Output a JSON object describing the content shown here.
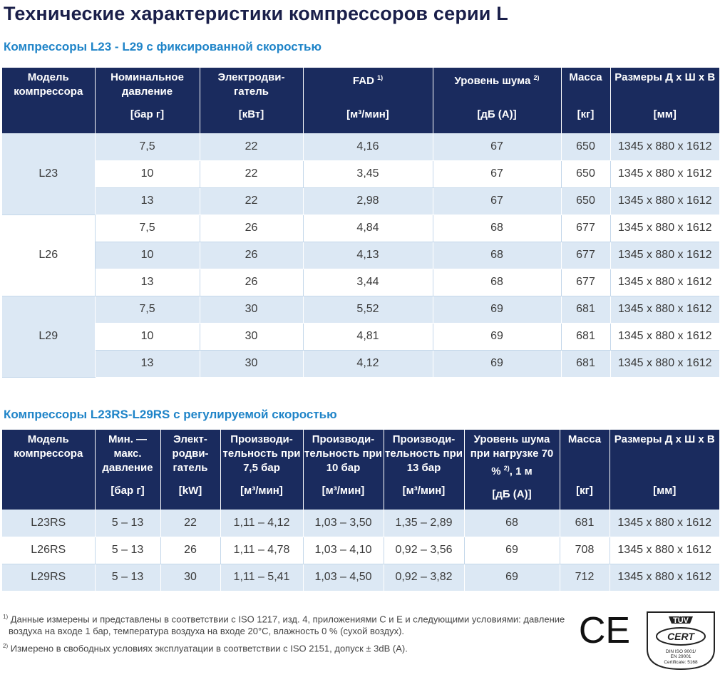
{
  "title": "Технические характеристики компрессоров серии L",
  "fixed": {
    "subtitle": "Компрессоры L23 - L29 с фиксированной скоростью",
    "headers": [
      {
        "label": "Модель компрессора",
        "sup": "",
        "unit": ""
      },
      {
        "label": "Номинальное давление",
        "sup": "",
        "unit": "[бар г]"
      },
      {
        "label": "Электродви- гатель",
        "sup": "",
        "unit": "[кВт]"
      },
      {
        "label": "FAD",
        "sup": "1)",
        "unit": "[м³/мин]"
      },
      {
        "label": "Уровень шума",
        "sup": "2)",
        "unit": "[дБ (А)]"
      },
      {
        "label": "Масса",
        "sup": "",
        "unit": "[кг]"
      },
      {
        "label": "Размеры Д х Ш х В",
        "sup": "",
        "unit": "[мм]"
      }
    ],
    "groups": [
      {
        "model": "L23",
        "rows": [
          [
            "7,5",
            "22",
            "4,16",
            "67",
            "650",
            "1345 x 880 x 1612"
          ],
          [
            "10",
            "22",
            "3,45",
            "67",
            "650",
            "1345 x 880 x 1612"
          ],
          [
            "13",
            "22",
            "2,98",
            "67",
            "650",
            "1345 x 880 x 1612"
          ]
        ]
      },
      {
        "model": "L26",
        "rows": [
          [
            "7,5",
            "26",
            "4,84",
            "68",
            "677",
            "1345 x 880 x 1612"
          ],
          [
            "10",
            "26",
            "4,13",
            "68",
            "677",
            "1345 x 880 x 1612"
          ],
          [
            "13",
            "26",
            "3,44",
            "68",
            "677",
            "1345 x 880 x 1612"
          ]
        ]
      },
      {
        "model": "L29",
        "rows": [
          [
            "7,5",
            "30",
            "5,52",
            "69",
            "681",
            "1345 x 880 x 1612"
          ],
          [
            "10",
            "30",
            "4,81",
            "69",
            "681",
            "1345 x 880 x 1612"
          ],
          [
            "13",
            "30",
            "4,12",
            "69",
            "681",
            "1345 x 880 x 1612"
          ]
        ]
      }
    ]
  },
  "variable": {
    "subtitle": "Компрессоры L23RS-L29RS с регулируемой скоростью",
    "headers": [
      {
        "label": "Модель компрессора",
        "sup": "",
        "tail": "",
        "unit": ""
      },
      {
        "label": "Мин. — макс. давление",
        "sup": "",
        "tail": "",
        "unit": "[бар г]"
      },
      {
        "label": "Элект- родви- гатель",
        "sup": "",
        "tail": "",
        "unit": "[kW]"
      },
      {
        "label": "Производи- тельность при 7,5 бар",
        "sup": "",
        "tail": "",
        "unit": "[м³/мин]"
      },
      {
        "label": "Производи- тельность при 10 бар",
        "sup": "",
        "tail": "",
        "unit": "[м³/мин]"
      },
      {
        "label": "Производи- тельность при 13 бар",
        "sup": "",
        "tail": "",
        "unit": "[м³/мин]"
      },
      {
        "label": "Уровень шума при нагрузке 70 %",
        "sup": "2)",
        "tail": ", 1 м",
        "unit": "[дБ (А)]"
      },
      {
        "label": "Масса",
        "sup": "",
        "tail": "",
        "unit": "[кг]"
      },
      {
        "label": "Размеры Д х Ш х В",
        "sup": "",
        "tail": "",
        "unit": "[мм]"
      }
    ],
    "rows": [
      [
        "L23RS",
        "5 – 13",
        "22",
        "1,11 – 4,12",
        "1,03 – 3,50",
        "1,35 – 2,89",
        "68",
        "681",
        "1345 x 880 x 1612"
      ],
      [
        "L26RS",
        "5 – 13",
        "26",
        "1,11 – 4,78",
        "1,03 – 4,10",
        "0,92 – 3,56",
        "69",
        "708",
        "1345 x 880 x 1612"
      ],
      [
        "L29RS",
        "5 – 13",
        "30",
        "1,11 – 5,41",
        "1,03 – 4,50",
        "0,92 – 3,82",
        "69",
        "712",
        "1345 x 880 x 1612"
      ]
    ]
  },
  "footnotes": [
    {
      "mark": "1)",
      "text": " Данные измерены и представлены в соответствии с ISO 1217, изд. 4, приложениями С и Е и следующими условиями: давление воздуха на входе 1 бар, температура воздуха на входе 20°С, влажность 0 % (сухой воздух)."
    },
    {
      "mark": "2)",
      "text": " Измерено в свободных условиях эксплуатации в соответствии с ISO 2151, допуск ± 3dB (А)."
    }
  ],
  "logos": {
    "ce": "CE",
    "tuv": {
      "top": "TÜV",
      "middle": "CERT",
      "line1": "DIN ISO 9001/",
      "line2": "EN 29001",
      "line3": "Certificate: 5168"
    }
  },
  "colors": {
    "header_bg": "#1a2b5e",
    "row_light": "#dce8f4",
    "accent": "#1f84c8",
    "title": "#1a1f4a"
  }
}
